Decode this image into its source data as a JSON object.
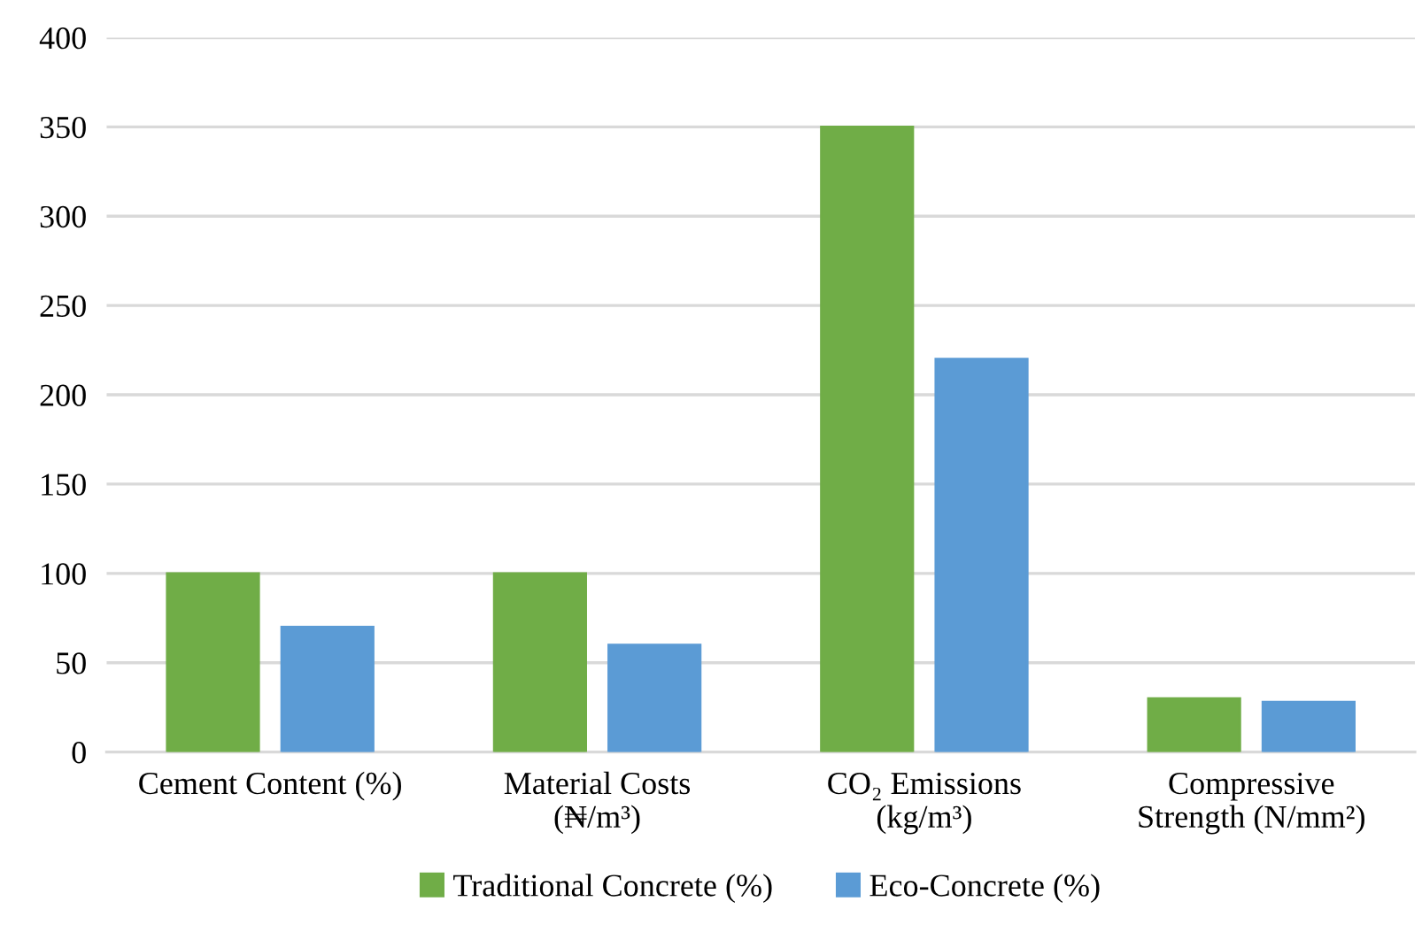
{
  "chart_data": {
    "type": "bar",
    "categories": [
      "Cement Content (%)",
      "Material Costs\n(₦/m³)",
      "CO₂ Emissions\n(kg/m³)",
      "Compressive\nStrength (N/mm²)"
    ],
    "series": [
      {
        "name": "Traditional Concrete (%)",
        "color": "#70ad47",
        "values": [
          100,
          100,
          350,
          30
        ]
      },
      {
        "name": "Eco-Concrete (%)",
        "color": "#5b9bd5",
        "values": [
          70,
          60,
          220,
          28
        ]
      }
    ],
    "ylim": [
      0,
      400
    ],
    "yticks": [
      0,
      50,
      100,
      150,
      200,
      250,
      300,
      350,
      400
    ],
    "grid": "y",
    "legend": "bottom"
  }
}
